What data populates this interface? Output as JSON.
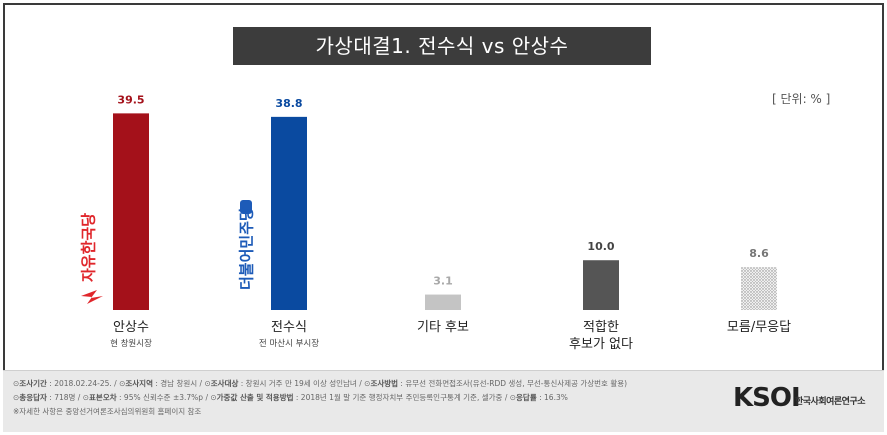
{
  "title": "가상대결1. 전수식 vs 안상수",
  "unit_label": "[ 단위: % ]",
  "chart_data": {
    "type": "bar",
    "title": "가상대결1. 전수식 vs 안상수",
    "ylim": [
      0,
      45
    ],
    "grid": false,
    "categories": [
      "안상수",
      "전수식",
      "기타 후보",
      "적합한 후보가 없다",
      "모름/무응답"
    ],
    "category_lines": [
      [
        "안상수"
      ],
      [
        "전수식"
      ],
      [
        "기타 후보"
      ],
      [
        "적합한",
        "후보가 없다"
      ],
      [
        "모름/무응답"
      ]
    ],
    "subtitles": [
      "현 창원시장",
      "전 마산시 부시장",
      "",
      "",
      ""
    ],
    "values": [
      39.5,
      38.8,
      3.1,
      10.0,
      8.6
    ],
    "value_labels": [
      "39.5",
      "38.8",
      "3.1",
      "10.0",
      "8.6"
    ],
    "bar_colors": [
      "#a4111a",
      "#0a4aa0",
      "#c4c4c4",
      "#555555",
      "hatch"
    ],
    "label_colors": [
      "#a4111a",
      "#0a4aa0",
      "#a8a8a8",
      "#444444",
      "#777777"
    ],
    "party_logos": [
      "자유한국당",
      "더불어민주당",
      "",
      "",
      ""
    ],
    "party_colors": [
      "#e0262b",
      "#1d5bb8",
      "",
      "",
      ""
    ]
  },
  "footer": {
    "line1": [
      {
        "k": "조사기간",
        "v": "2018.02.24-25."
      },
      {
        "k": "조사지역",
        "v": "경남 창원시"
      },
      {
        "k": "조사대상",
        "v": "창원시 거주 만 19세 이상 성인남녀"
      },
      {
        "k": "조사방법",
        "v": "유무선 전화면접조사(유선-RDD 생성, 무선-통신사제공 가상번호 활용)"
      }
    ],
    "line2": [
      {
        "k": "총응답자",
        "v": "718명"
      },
      {
        "k": "표본오차",
        "v": "95% 신뢰수준 ±3.7%p"
      },
      {
        "k": "가중값 산출 및 적용방법",
        "v": "2018년 1월 말 기준 행정자치부 주민등록인구통계 기준, 셀가중"
      },
      {
        "k": "응답률",
        "v": "16.3%"
      }
    ],
    "line3": "※자세한 사항은 중앙선거여론조사심의위원회 홈페이지 참조",
    "logo_text": "KSOI",
    "logo_sub": "한국사회여론연구소"
  }
}
